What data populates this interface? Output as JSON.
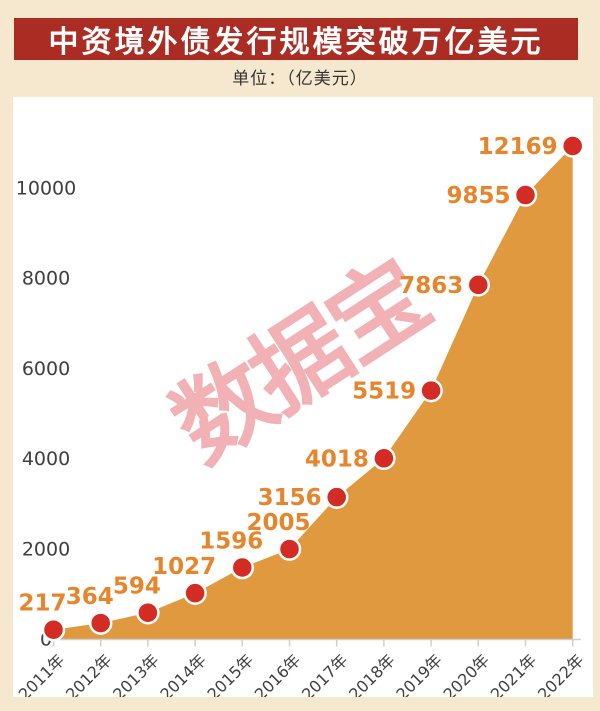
{
  "page": {
    "background": "#f5e8ce"
  },
  "header": {
    "title": "中资境外债发行规模突破万亿美元",
    "banner_color": "#ab2c23",
    "title_color": "#ffffff",
    "subtitle": "单位：（亿美元）",
    "subtitle_color": "#333333"
  },
  "watermark": {
    "text": "数据宝",
    "color": "#f2b1b5"
  },
  "chart_data": {
    "type": "area",
    "title": "中资境外债发行规模突破万亿美元",
    "unit_label": "单位：（亿美元）",
    "categories": [
      "2011年",
      "2012年",
      "2013年",
      "2014年",
      "2015年",
      "2016年",
      "2017年",
      "2018年",
      "2019年",
      "2020年",
      "2021年",
      "2022年"
    ],
    "values": [
      217,
      364,
      594,
      1027,
      1596,
      2005,
      3156,
      4018,
      5519,
      7863,
      9855,
      12169
    ],
    "y_ticks": [
      0,
      2000,
      4000,
      6000,
      8000,
      10000
    ],
    "ylim": [
      0,
      12169
    ],
    "xlabel": "",
    "ylabel": "",
    "grid": false,
    "legend": "none",
    "x_label_rotation": -45,
    "colors": {
      "area": "#e0993e",
      "point": "#d22c24",
      "point_border": "#ffffff",
      "value_label": "#e7852c",
      "axis_line": "#cfcfcf",
      "axis_text": "#3f3f3f"
    }
  }
}
